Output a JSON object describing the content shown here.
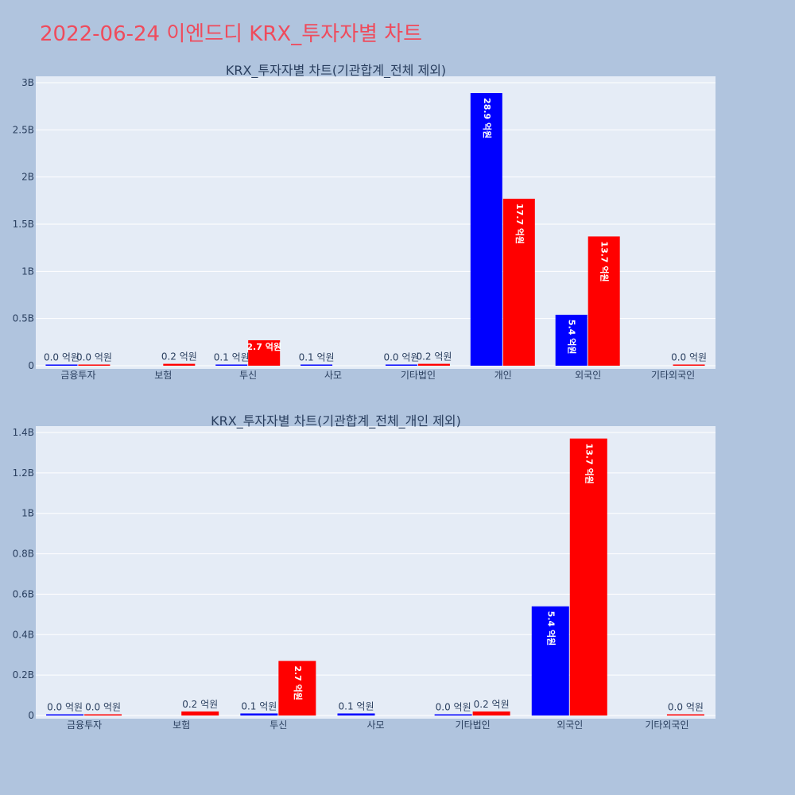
{
  "title": "2022-06-24 이엔드디 KRX_투자자별 차트",
  "colors": {
    "buy": "#0000ff",
    "sell": "#ff0000",
    "plot_bg": "#e5ecf6",
    "page_bg": "#b0c4de",
    "title": "#ef4b5c"
  },
  "chart_data": [
    {
      "type": "bar",
      "title": "KRX_투자자별 차트(기관합계_전체 제외)",
      "categories": [
        "금융투자",
        "보험",
        "투신",
        "사모",
        "기타법인",
        "개인",
        "외국인",
        "기타외국인"
      ],
      "series": [
        {
          "values": [
            0.002,
            null,
            0.01,
            0.01,
            0.001,
            2.89,
            0.54,
            null
          ],
          "labels": [
            "0.0 억원",
            "",
            "0.1 억원",
            "0.1 억원",
            "0.0 억원",
            "28.9 억원",
            "5.4 억원",
            ""
          ]
        },
        {
          "values": [
            0.001,
            0.02,
            0.27,
            null,
            0.02,
            1.77,
            1.37,
            0.001
          ],
          "labels": [
            "0.0 억원",
            "0.2 억원",
            "2.7 억원",
            "",
            "0.2 억원",
            "17.7 억원",
            "13.7 억원",
            "0.0 억원"
          ]
        }
      ],
      "y_ticks": [
        "0",
        "0.5B",
        "1B",
        "1.5B",
        "2B",
        "2.5B",
        "3B"
      ],
      "ylim": [
        0,
        3.0
      ]
    },
    {
      "type": "bar",
      "title": "KRX_투자자별 차트(기관합계_전체_개인 제외)",
      "categories": [
        "금융투자",
        "보험",
        "투신",
        "사모",
        "기타법인",
        "외국인",
        "기타외국인"
      ],
      "series": [
        {
          "values": [
            0.002,
            null,
            0.01,
            0.01,
            0.001,
            0.54,
            null
          ],
          "labels": [
            "0.0 억원",
            "",
            "0.1 억원",
            "0.1 억원",
            "0.0 억원",
            "5.4 억원",
            ""
          ]
        },
        {
          "values": [
            0.001,
            0.02,
            0.27,
            null,
            0.02,
            1.37,
            0.001
          ],
          "labels": [
            "0.0 억원",
            "0.2 억원",
            "2.7 억원",
            "",
            "0.2 억원",
            "13.7 억원",
            "0.0 억원"
          ]
        }
      ],
      "y_ticks": [
        "0",
        "0.2B",
        "0.4B",
        "0.6B",
        "0.8B",
        "1B",
        "1.2B",
        "1.4B"
      ],
      "ylim": [
        0,
        1.4
      ]
    }
  ]
}
